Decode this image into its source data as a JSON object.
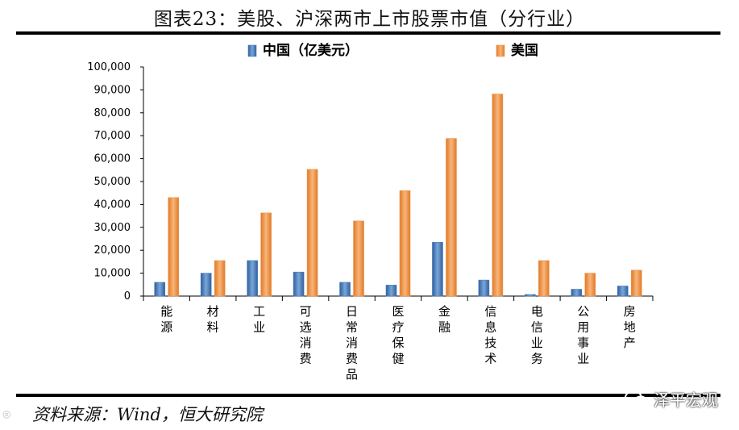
{
  "figure": {
    "title": "图表23：美股、沪深两市上市股票市值（分行业）",
    "source": "资料来源：Wind，恒大研究院",
    "watermark": "泽平宏观"
  },
  "colors": {
    "china": "#4a7ebb",
    "us": "#f0964a"
  },
  "chart_data": {
    "type": "bar",
    "title": "",
    "xlabel": "",
    "ylabel": "",
    "ylim": [
      0,
      100000
    ],
    "ytick_step": 10000,
    "ytick_labels": [
      "0",
      "10,000",
      "20,000",
      "30,000",
      "40,000",
      "50,000",
      "60,000",
      "70,000",
      "80,000",
      "90,000",
      "100,000"
    ],
    "legend_position": "top",
    "categories": [
      "能源",
      "材料",
      "工业",
      "可选消费",
      "日常消费品",
      "医疗保健",
      "金融",
      "信息技术",
      "电信业务",
      "公用事业",
      "房地产"
    ],
    "series": [
      {
        "name": "中国（亿美元）",
        "color": "#4a7ebb",
        "values": [
          6000,
          10000,
          15500,
          10500,
          6000,
          4800,
          23500,
          7000,
          700,
          3000,
          4400
        ]
      },
      {
        "name": "美国",
        "color": "#f0964a",
        "values": [
          43000,
          15500,
          36300,
          55300,
          32800,
          46000,
          68800,
          88200,
          15500,
          10000,
          11300
        ]
      }
    ]
  }
}
